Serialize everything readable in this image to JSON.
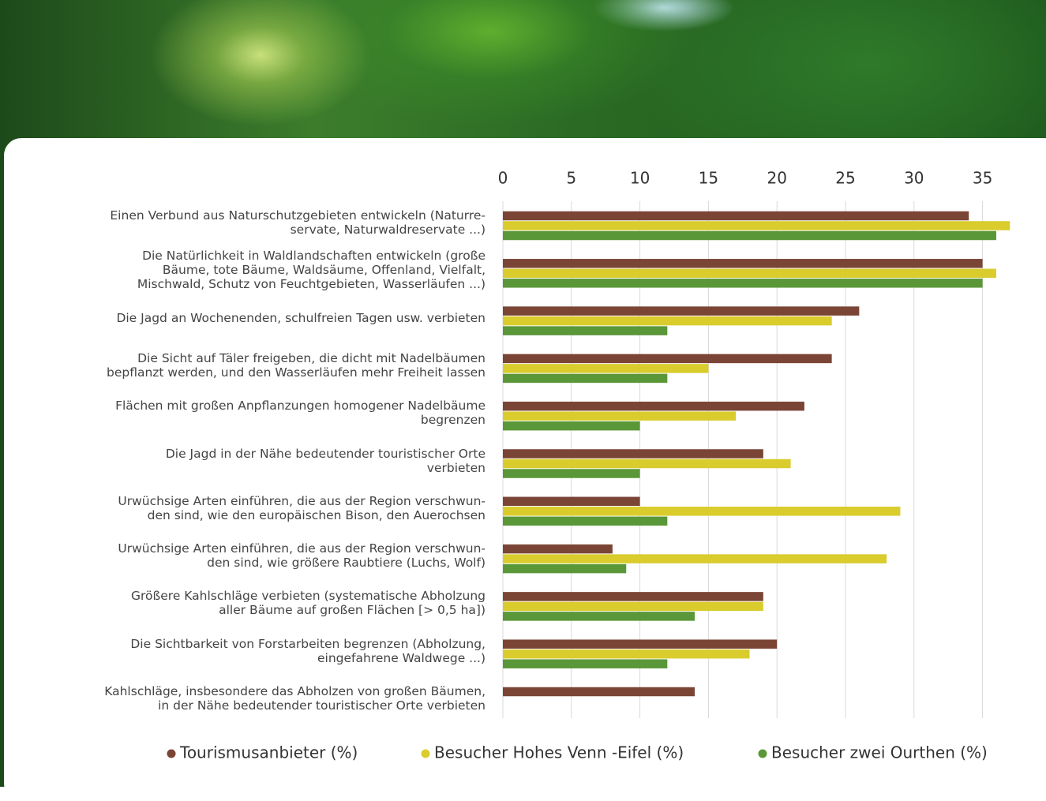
{
  "chart_data": {
    "type": "bar",
    "orientation": "horizontal",
    "categories": [
      "Einen Verbund aus Naturschutzgebieten entwickeln (Naturre-\nservate, Naturwaldreservate ...)",
      "Die Natürlichkeit in Waldlandschaften entwickeln (große\nBäume, tote Bäume, Waldsäume, Offenland, Vielfalt,\nMischwald, Schutz von Feuchtgebieten, Wasserläufen ...)",
      "Die Jagd an Wochenenden, schulfreien Tagen usw. verbieten",
      "Die Sicht auf Täler freigeben, die dicht mit Nadelbäumen\nbepflanzt werden, und den Wasserläufen mehr Freiheit lassen",
      "Flächen mit großen Anpflanzungen homogener Nadelbäume\nbegrenzen",
      "Die Jagd in der Nähe bedeutender touristischer Orte\nverbieten",
      "Urwüchsige Arten einführen, die aus der Region verschwun-\nden sind, wie den europäischen Bison, den Auerochsen",
      "Urwüchsige Arten einführen, die aus der Region verschwun-\nden sind, wie größere Raubtiere (Luchs, Wolf)",
      "Größere Kahlschläge verbieten (systematische Abholzung\naller Bäume auf großen Flächen [> 0,5 ha])",
      "Die Sichtbarkeit von Forstarbeiten begrenzen (Abholzung,\neingefahrene Waldwege ...)",
      "Kahlschläge, insbesondere das Abholzen von großen Bäumen,\nin der Nähe bedeutender touristischer Orte verbieten"
    ],
    "series": [
      {
        "name": "Tourismusanbieter (%)",
        "color": "#7b4536",
        "values": [
          34,
          35,
          26,
          24,
          22,
          19,
          10,
          8,
          19,
          20,
          14
        ]
      },
      {
        "name": "Besucher Hohes Venn -Eifel (%)",
        "color": "#d9cc2c",
        "values": [
          37,
          36,
          24,
          15,
          17,
          21,
          29,
          28,
          19,
          18,
          null
        ]
      },
      {
        "name": "Besucher zwei Ourthen (%)",
        "color": "#5a9738",
        "values": [
          36,
          35,
          12,
          12,
          10,
          10,
          12,
          9,
          14,
          12,
          null
        ]
      }
    ],
    "xlim": [
      0,
      37.5
    ],
    "xticks": [
      0,
      5,
      10,
      15,
      20,
      25,
      30,
      35
    ],
    "grid": true,
    "legend": "bottom"
  }
}
